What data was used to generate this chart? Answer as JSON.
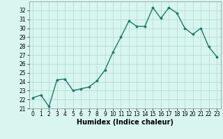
{
  "x": [
    0,
    1,
    2,
    3,
    4,
    5,
    6,
    7,
    8,
    9,
    10,
    11,
    12,
    13,
    14,
    15,
    16,
    17,
    18,
    19,
    20,
    21,
    22,
    23
  ],
  "y": [
    22.2,
    22.5,
    21.2,
    24.2,
    24.3,
    23.0,
    23.2,
    23.4,
    24.1,
    25.3,
    27.3,
    29.0,
    30.8,
    30.2,
    30.2,
    32.3,
    31.1,
    32.3,
    31.7,
    30.0,
    29.3,
    30.0,
    27.9,
    26.8
  ],
  "line_color": "#1a7a6a",
  "marker": "D",
  "marker_size": 1.5,
  "bg_color": "#d8f5f0",
  "grid_color": "#b0d8d0",
  "xlabel": "Humidex (Indice chaleur)",
  "ylim": [
    21,
    33
  ],
  "xlim": [
    -0.5,
    23.5
  ],
  "yticks": [
    21,
    22,
    23,
    24,
    25,
    26,
    27,
    28,
    29,
    30,
    31,
    32
  ],
  "xticks": [
    0,
    1,
    2,
    3,
    4,
    5,
    6,
    7,
    8,
    9,
    10,
    11,
    12,
    13,
    14,
    15,
    16,
    17,
    18,
    19,
    20,
    21,
    22,
    23
  ],
  "tick_fontsize": 5.5,
  "xlabel_fontsize": 7.0,
  "linewidth": 1.0
}
